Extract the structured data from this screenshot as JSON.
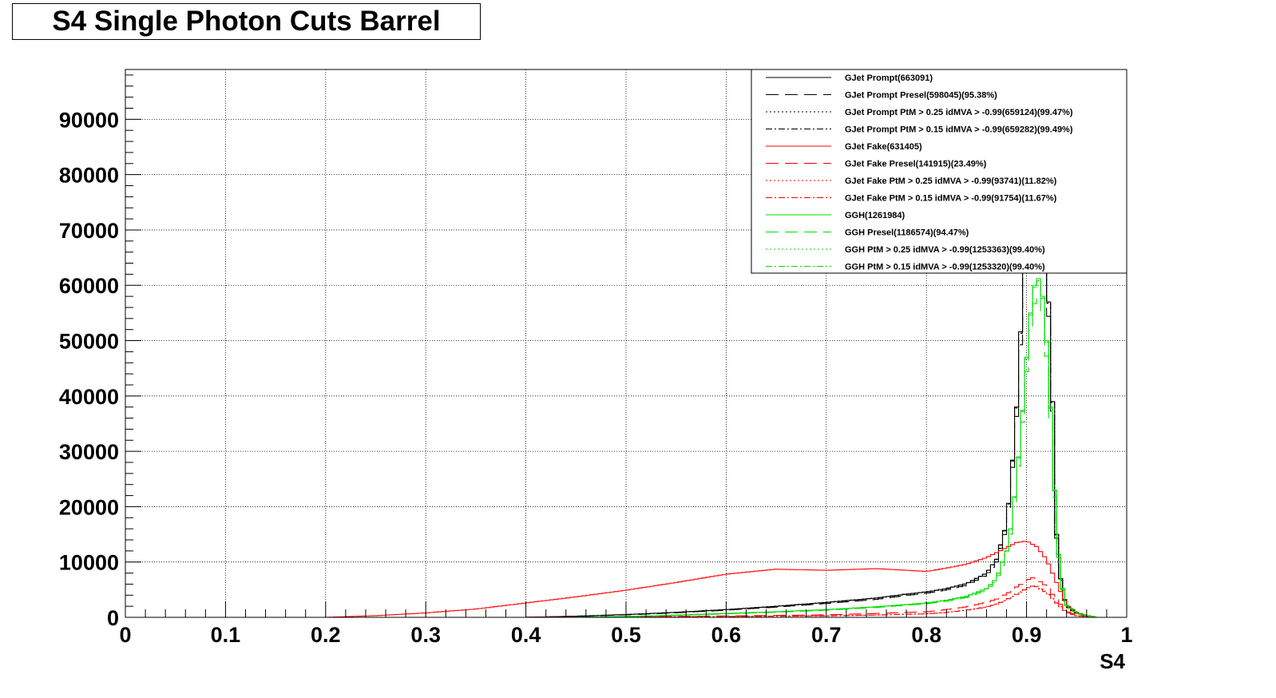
{
  "chart_data": {
    "type": "line",
    "title": "S4 Single Photon Cuts Barrel",
    "xlabel": "S4",
    "ylabel": "",
    "xlim": [
      0,
      1
    ],
    "ylim": [
      0,
      99000
    ],
    "grid": true,
    "legend_position": "top-right",
    "x_ticks": [
      0,
      0.1,
      0.2,
      0.3,
      0.4,
      0.5,
      0.6,
      0.7,
      0.8,
      0.9,
      1
    ],
    "x_tick_labels": [
      "0",
      "0.1",
      "0.2",
      "0.3",
      "0.4",
      "0.5",
      "0.6",
      "0.7",
      "0.8",
      "0.9",
      "1"
    ],
    "y_ticks": [
      0,
      10000,
      20000,
      30000,
      40000,
      50000,
      60000,
      70000,
      80000,
      90000
    ],
    "y_tick_labels": [
      "0",
      "10000",
      "20000",
      "30000",
      "40000",
      "50000",
      "60000",
      "70000",
      "80000",
      "90000"
    ],
    "series": [
      {
        "name": "GJet Prompt(663091)",
        "color": "#000000",
        "dash": "solid",
        "x": [
          0.4,
          0.45,
          0.5,
          0.55,
          0.6,
          0.65,
          0.7,
          0.75,
          0.78,
          0.8,
          0.82,
          0.84,
          0.86,
          0.87,
          0.88,
          0.885,
          0.89,
          0.895,
          0.9,
          0.905,
          0.91,
          0.915,
          0.92,
          0.925,
          0.93,
          0.935,
          0.94,
          0.95,
          0.96,
          0.97
        ],
        "y": [
          0,
          200,
          500,
          900,
          1400,
          2000,
          2700,
          3500,
          4200,
          4600,
          5200,
          6100,
          8000,
          10500,
          17000,
          26000,
          38000,
          55000,
          72000,
          88000,
          98000,
          97000,
          65000,
          45000,
          15000,
          5000,
          2000,
          800,
          300,
          0
        ]
      },
      {
        "name": "GJet Prompt Presel(598045)(95.38%)",
        "color": "#000000",
        "dash": "16,8",
        "x": [
          0.4,
          0.45,
          0.5,
          0.55,
          0.6,
          0.65,
          0.7,
          0.75,
          0.78,
          0.8,
          0.82,
          0.84,
          0.86,
          0.87,
          0.88,
          0.885,
          0.89,
          0.895,
          0.9,
          0.905,
          0.91,
          0.915,
          0.92,
          0.925,
          0.93,
          0.935,
          0.94,
          0.95,
          0.96,
          0.97
        ],
        "y": [
          0,
          180,
          450,
          820,
          1300,
          1850,
          2500,
          3250,
          3950,
          4350,
          4950,
          5800,
          7600,
          10000,
          16200,
          24800,
          36300,
          52500,
          68700,
          84000,
          93500,
          92500,
          62000,
          43000,
          14300,
          4800,
          1900,
          760,
          280,
          0
        ]
      },
      {
        "name": "GJet Prompt PtM > 0.25 idMVA > -0.99(659124)(99.47%)",
        "color": "#000000",
        "dash": "2,3",
        "x": [
          0.4,
          0.45,
          0.5,
          0.55,
          0.6,
          0.65,
          0.7,
          0.75,
          0.78,
          0.8,
          0.82,
          0.84,
          0.86,
          0.87,
          0.88,
          0.885,
          0.89,
          0.895,
          0.9,
          0.905,
          0.91,
          0.915,
          0.92,
          0.925,
          0.93,
          0.935,
          0.94,
          0.95,
          0.96,
          0.97
        ],
        "y": [
          0,
          195,
          495,
          895,
          1390,
          1990,
          2690,
          3480,
          4180,
          4580,
          5170,
          6070,
          7960,
          10450,
          16900,
          25850,
          37800,
          54700,
          71600,
          87500,
          97500,
          96500,
          64700,
          44800,
          14900,
          4980,
          1990,
          795,
          298,
          0
        ]
      },
      {
        "name": "GJet Prompt PtM > 0.15 idMVA > -0.99(659282)(99.49%)",
        "color": "#000000",
        "dash": "8,3,2,3",
        "x": [
          0.4,
          0.45,
          0.5,
          0.55,
          0.6,
          0.65,
          0.7,
          0.75,
          0.78,
          0.8,
          0.82,
          0.84,
          0.86,
          0.87,
          0.88,
          0.885,
          0.89,
          0.895,
          0.9,
          0.905,
          0.91,
          0.915,
          0.92,
          0.925,
          0.93,
          0.935,
          0.94,
          0.95,
          0.96,
          0.97
        ],
        "y": [
          0,
          197,
          497,
          897,
          1395,
          1995,
          2695,
          3490,
          4190,
          4590,
          5180,
          6080,
          7970,
          10470,
          16920,
          25880,
          37850,
          54750,
          71650,
          87550,
          97550,
          96550,
          64750,
          44850,
          14920,
          4985,
          1992,
          796,
          299,
          0
        ]
      },
      {
        "name": "GJet Fake(631405)",
        "color": "#ff0000",
        "dash": "solid",
        "x": [
          0.2,
          0.25,
          0.3,
          0.35,
          0.4,
          0.45,
          0.5,
          0.55,
          0.58,
          0.6,
          0.65,
          0.7,
          0.75,
          0.8,
          0.82,
          0.84,
          0.86,
          0.87,
          0.88,
          0.89,
          0.9,
          0.91,
          0.92,
          0.93,
          0.94,
          0.95,
          0.96,
          0.97
        ],
        "y": [
          0,
          300,
          800,
          1500,
          2600,
          3700,
          4900,
          6300,
          7200,
          7800,
          8700,
          8500,
          8800,
          8300,
          8900,
          9600,
          10800,
          11700,
          12600,
          13500,
          13800,
          12800,
          10500,
          6300,
          2200,
          900,
          300,
          0
        ]
      },
      {
        "name": "GJet Fake Presel(141915)(23.49%)",
        "color": "#ff0000",
        "dash": "16,8",
        "x": [
          0.4,
          0.5,
          0.6,
          0.7,
          0.75,
          0.8,
          0.82,
          0.84,
          0.86,
          0.87,
          0.88,
          0.89,
          0.9,
          0.905,
          0.91,
          0.92,
          0.93,
          0.94,
          0.95,
          0.96,
          0.97
        ],
        "y": [
          0,
          100,
          250,
          450,
          700,
          1000,
          1400,
          1900,
          2700,
          3300,
          4200,
          5500,
          6600,
          7200,
          7000,
          5600,
          3200,
          1100,
          400,
          150,
          0
        ]
      },
      {
        "name": "GJet Fake PtM > 0.25 idMVA > -0.99(93741)(11.82%)",
        "color": "#ff0000",
        "dash": "2,3",
        "x": [
          0.4,
          0.5,
          0.6,
          0.7,
          0.75,
          0.8,
          0.82,
          0.84,
          0.86,
          0.87,
          0.88,
          0.89,
          0.9,
          0.905,
          0.91,
          0.92,
          0.93,
          0.94,
          0.95,
          0.96,
          0.97
        ],
        "y": [
          0,
          60,
          150,
          280,
          420,
          650,
          900,
          1300,
          1900,
          2400,
          3200,
          4200,
          5200,
          5700,
          5600,
          4500,
          2600,
          900,
          300,
          100,
          0
        ]
      },
      {
        "name": "GJet Fake PtM > 0.15 idMVA > -0.99(91754)(11.67%)",
        "color": "#ff0000",
        "dash": "8,3,2,3",
        "x": [
          0.4,
          0.5,
          0.6,
          0.7,
          0.75,
          0.8,
          0.82,
          0.84,
          0.86,
          0.87,
          0.88,
          0.89,
          0.9,
          0.905,
          0.91,
          0.92,
          0.93,
          0.94,
          0.95,
          0.96,
          0.97
        ],
        "y": [
          0,
          58,
          145,
          270,
          410,
          640,
          880,
          1280,
          1870,
          2370,
          3170,
          4150,
          5150,
          5650,
          5550,
          4450,
          2570,
          890,
          295,
          98,
          0
        ]
      },
      {
        "name": "GGH(1261984)",
        "color": "#00dd00",
        "dash": "solid",
        "x": [
          0.45,
          0.5,
          0.55,
          0.6,
          0.65,
          0.7,
          0.75,
          0.8,
          0.82,
          0.84,
          0.86,
          0.87,
          0.88,
          0.885,
          0.89,
          0.895,
          0.9,
          0.905,
          0.91,
          0.915,
          0.92,
          0.925,
          0.93,
          0.935,
          0.94,
          0.95,
          0.96,
          0.97
        ],
        "y": [
          0,
          150,
          400,
          700,
          1000,
          1400,
          1900,
          2600,
          3100,
          3800,
          5200,
          7000,
          12000,
          17000,
          25000,
          35000,
          47000,
          57000,
          62000,
          60000,
          50000,
          35000,
          15000,
          6000,
          2200,
          800,
          300,
          0
        ]
      },
      {
        "name": "GGH Presel(1186574)(94.47%)",
        "color": "#00dd00",
        "dash": "16,8",
        "x": [
          0.45,
          0.5,
          0.55,
          0.6,
          0.65,
          0.7,
          0.75,
          0.8,
          0.82,
          0.84,
          0.86,
          0.87,
          0.88,
          0.885,
          0.89,
          0.895,
          0.9,
          0.905,
          0.91,
          0.915,
          0.92,
          0.925,
          0.93,
          0.935,
          0.94,
          0.95,
          0.96,
          0.97
        ],
        "y": [
          0,
          130,
          360,
          640,
          920,
          1300,
          1780,
          2450,
          2920,
          3580,
          4900,
          6600,
          11300,
          16000,
          23600,
          33000,
          44400,
          53800,
          58600,
          56700,
          47200,
          33000,
          14200,
          5700,
          2080,
          760,
          285,
          0
        ]
      },
      {
        "name": "GGH PtM > 0.25 idMVA > -0.99(1253363)(99.40%)",
        "color": "#00dd00",
        "dash": "2,3",
        "x": [
          0.45,
          0.5,
          0.55,
          0.6,
          0.65,
          0.7,
          0.75,
          0.8,
          0.82,
          0.84,
          0.86,
          0.87,
          0.88,
          0.885,
          0.89,
          0.895,
          0.9,
          0.905,
          0.91,
          0.915,
          0.92,
          0.925,
          0.93,
          0.935,
          0.94,
          0.95,
          0.96,
          0.97
        ],
        "y": [
          0,
          148,
          395,
          694,
          993,
          1390,
          1888,
          2584,
          3080,
          3777,
          5170,
          6960,
          11930,
          16900,
          24850,
          34800,
          46700,
          56650,
          61600,
          59650,
          49700,
          34800,
          14910,
          5965,
          2186,
          795,
          298,
          0
        ]
      },
      {
        "name": "GGH PtM > 0.15 idMVA > -0.99(1253320)(99.40%)",
        "color": "#00dd00",
        "dash": "8,3,2,3",
        "x": [
          0.45,
          0.5,
          0.55,
          0.6,
          0.65,
          0.7,
          0.75,
          0.8,
          0.82,
          0.84,
          0.86,
          0.87,
          0.88,
          0.885,
          0.89,
          0.895,
          0.9,
          0.905,
          0.91,
          0.915,
          0.92,
          0.925,
          0.93,
          0.935,
          0.94,
          0.95,
          0.96,
          0.97
        ],
        "y": [
          0,
          148,
          394,
          693,
          992,
          1389,
          1887,
          2583,
          3079,
          3776,
          5169,
          6958,
          11928,
          16898,
          24848,
          34798,
          46698,
          56648,
          61598,
          59648,
          49698,
          34798,
          14908,
          5964,
          2185,
          794,
          297,
          0
        ]
      }
    ]
  }
}
